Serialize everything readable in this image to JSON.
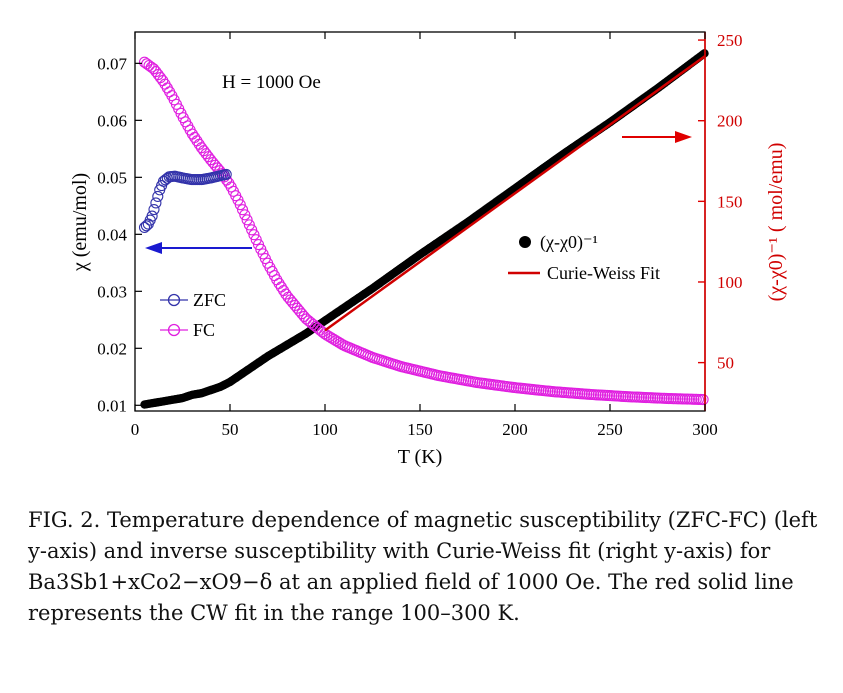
{
  "chart_data": {
    "type": "scatter",
    "title": "",
    "annotation": "H = 1000 Oe",
    "xlabel": "T (K)",
    "ylabel_left": "χ (emu/mol)",
    "ylabel_right": "(χ-χ0)⁻¹ ( mol/emu)",
    "xlim": [
      0,
      300
    ],
    "ylim_left": [
      0.009,
      0.0755
    ],
    "ylim_right": [
      20,
      255
    ],
    "x_ticks": [
      "0",
      "50",
      "100",
      "150",
      "200",
      "250",
      "300"
    ],
    "y_left_ticks": [
      "0.01",
      "0.02",
      "0.03",
      "0.04",
      "0.05",
      "0.06",
      "0.07"
    ],
    "y_right_ticks": [
      "50",
      "100",
      "150",
      "200",
      "250"
    ],
    "grid": false,
    "legend_left": [
      {
        "label": "ZFC",
        "color": "#3333aa"
      },
      {
        "label": "FC",
        "color": "#e020e0"
      }
    ],
    "legend_right": [
      {
        "label": "(χ-χ0)⁻¹",
        "color": "#000000"
      },
      {
        "label": "Curie-Weiss Fit",
        "color": "#d00000"
      }
    ],
    "series": [
      {
        "name": "ZFC",
        "axis": "left",
        "marker": "open-circle",
        "color": "#3333aa",
        "points": [
          [
            5,
            0.0412
          ],
          [
            7,
            0.0418
          ],
          [
            9,
            0.0432
          ],
          [
            11,
            0.0455
          ],
          [
            13,
            0.0478
          ],
          [
            15,
            0.0493
          ],
          [
            18,
            0.0501
          ],
          [
            21,
            0.0502
          ],
          [
            25,
            0.0499
          ],
          [
            30,
            0.0496
          ],
          [
            35,
            0.0496
          ],
          [
            40,
            0.0499
          ],
          [
            45,
            0.0503
          ],
          [
            48,
            0.0505
          ]
        ]
      },
      {
        "name": "FC",
        "axis": "left",
        "marker": "open-circle",
        "color": "#e020e0",
        "points": [
          [
            5,
            0.0702
          ],
          [
            10,
            0.069
          ],
          [
            15,
            0.0668
          ],
          [
            20,
            0.064
          ],
          [
            25,
            0.0607
          ],
          [
            30,
            0.0577
          ],
          [
            35,
            0.0552
          ],
          [
            40,
            0.053
          ],
          [
            45,
            0.051
          ],
          [
            50,
            0.0487
          ],
          [
            55,
            0.0455
          ],
          [
            60,
            0.0418
          ],
          [
            65,
            0.0382
          ],
          [
            70,
            0.0348
          ],
          [
            75,
            0.0318
          ],
          [
            80,
            0.0292
          ],
          [
            90,
            0.0252
          ],
          [
            100,
            0.0225
          ],
          [
            110,
            0.0205
          ],
          [
            125,
            0.0184
          ],
          [
            140,
            0.0168
          ],
          [
            160,
            0.0152
          ],
          [
            180,
            0.014
          ],
          [
            200,
            0.0131
          ],
          [
            220,
            0.0124
          ],
          [
            240,
            0.0119
          ],
          [
            260,
            0.0115
          ],
          [
            280,
            0.0112
          ],
          [
            300,
            0.011
          ]
        ]
      },
      {
        "name": "(χ-χ0)⁻¹",
        "axis": "right",
        "marker": "filled-circle",
        "color": "#000000",
        "points": [
          [
            5,
            24
          ],
          [
            10,
            25
          ],
          [
            15,
            26
          ],
          [
            20,
            27
          ],
          [
            25,
            28
          ],
          [
            30,
            30
          ],
          [
            35,
            31
          ],
          [
            40,
            33
          ],
          [
            45,
            35
          ],
          [
            50,
            38
          ],
          [
            55,
            42
          ],
          [
            60,
            46
          ],
          [
            70,
            54
          ],
          [
            80,
            61
          ],
          [
            90,
            68
          ],
          [
            100,
            76
          ],
          [
            125,
            96
          ],
          [
            150,
            117
          ],
          [
            175,
            137
          ],
          [
            200,
            158
          ],
          [
            225,
            179
          ],
          [
            250,
            199
          ],
          [
            275,
            220
          ],
          [
            300,
            242
          ]
        ]
      },
      {
        "name": "Curie-Weiss Fit",
        "axis": "right",
        "marker": "line",
        "color": "#d00000",
        "points": [
          [
            100,
            70
          ],
          [
            300,
            240
          ]
        ]
      }
    ]
  },
  "caption": {
    "text": "FIG. 2. Temperature dependence of magnetic susceptibility (ZFC-FC) (left y-axis) and inverse susceptibility with Curie-Weiss fit (right y-axis) for Ba3Sb1+xCo2−xO9−δ at an applied field of 1000 Oe. The red solid line represents the CW fit in the range 100–300 K."
  }
}
